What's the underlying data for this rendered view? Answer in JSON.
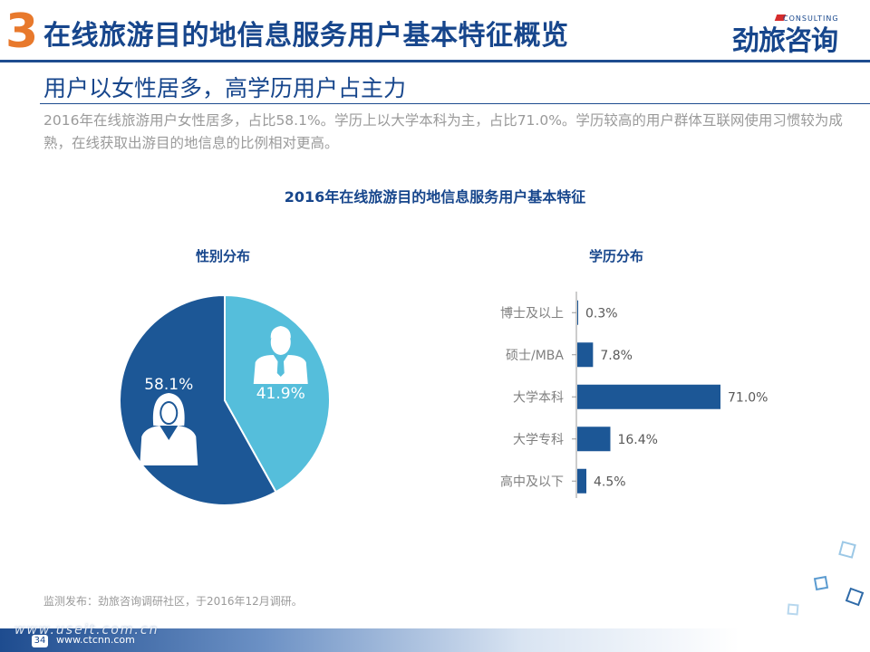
{
  "header": {
    "section_number": "3",
    "title": "在线旅游目的地信息服务用户基本特征概览",
    "brand_name": "劲旅咨询",
    "brand_sub": "CONSULTING"
  },
  "subtitle": "用户以女性居多，高学历用户占主力",
  "description": "2016年在线旅游用户女性居多，占比58.1%。学历上以大学本科为主，占比71.0%。学历较高的用户群体互联网使用习惯较为成熟，在线获取出游目的地信息的比例相对更高。",
  "chart_title": "2016年在线旅游目的地信息服务用户基本特征",
  "chart_data": [
    {
      "type": "pie",
      "title": "性别分布",
      "slices": [
        {
          "label": "58.1%",
          "value": 58.1,
          "icon": "female-user-icon",
          "color": "#1c5796"
        },
        {
          "label": "41.9%",
          "value": 41.9,
          "icon": "male-user-icon",
          "color": "#55bedb"
        }
      ]
    },
    {
      "type": "bar",
      "orientation": "horizontal",
      "title": "学历分布",
      "categories": [
        "博士及以上",
        "硕士/MBA",
        "大学本科",
        "大学专科",
        "高中及以下"
      ],
      "values": [
        0.3,
        7.8,
        71.0,
        16.4,
        4.5
      ],
      "value_labels": [
        "0.3%",
        "7.8%",
        "71.0%",
        "16.4%",
        "4.5%"
      ],
      "color": "#1c5796"
    }
  ],
  "footer": {
    "note": "监测发布：劲旅咨询调研社区，于2016年12月调研。",
    "page_number": "34",
    "url": "www.ctcnn.com",
    "watermark": "www.useit.com.cn"
  }
}
